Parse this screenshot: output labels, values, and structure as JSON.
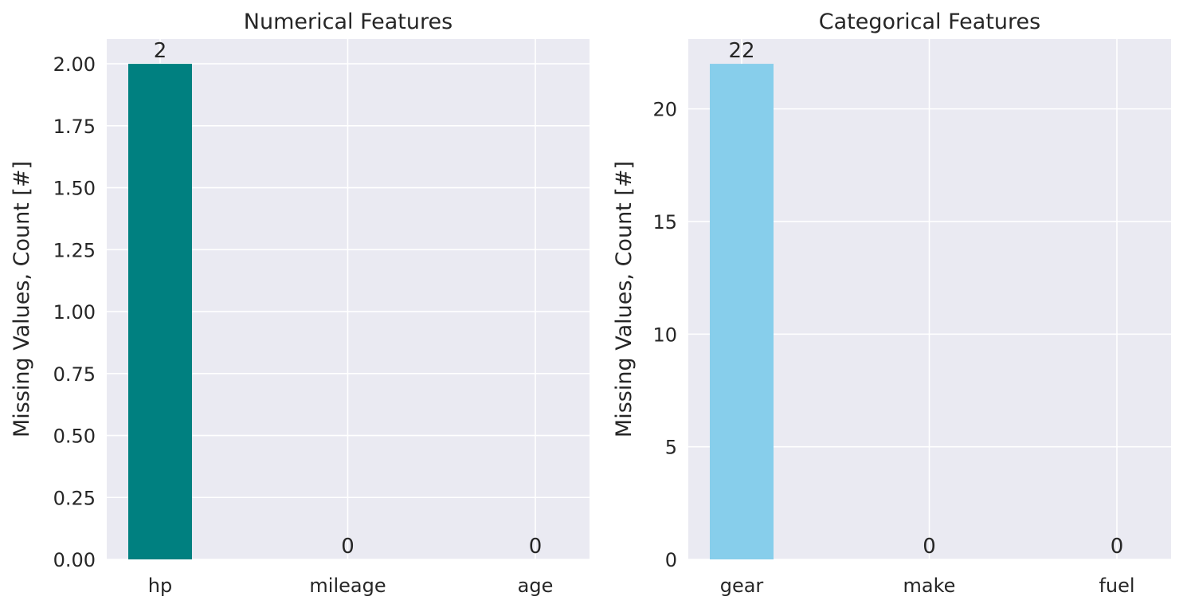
{
  "style": {
    "plot_background": "#EAEAF2",
    "grid_color": "#FFFFFF",
    "text_color": "#262626"
  },
  "chart_data": [
    {
      "type": "bar",
      "title": "Numerical Features",
      "xlabel": "",
      "ylabel": "Missing Values, Count [#]",
      "categories": [
        "hp",
        "mileage",
        "age"
      ],
      "values": [
        2,
        0,
        0
      ],
      "data_labels": [
        "2",
        "0",
        "0"
      ],
      "ylim": [
        0,
        2.1
      ],
      "yticks": [
        0,
        0.25,
        0.5,
        0.75,
        1.0,
        1.25,
        1.5,
        1.75,
        2.0
      ],
      "ytick_labels": [
        "0.00",
        "0.25",
        "0.50",
        "0.75",
        "1.00",
        "1.25",
        "1.50",
        "1.75",
        "2.00"
      ],
      "bar_color": "#008080",
      "grid": true
    },
    {
      "type": "bar",
      "title": "Categorical Features",
      "xlabel": "",
      "ylabel": "Missing Values, Count [#]",
      "categories": [
        "gear",
        "make",
        "fuel"
      ],
      "values": [
        22,
        0,
        0
      ],
      "data_labels": [
        "22",
        "0",
        "0"
      ],
      "ylim": [
        0,
        23.1
      ],
      "yticks": [
        0,
        5,
        10,
        15,
        20
      ],
      "ytick_labels": [
        "0",
        "5",
        "10",
        "15",
        "20"
      ],
      "bar_color": "#87CEEB",
      "grid": true
    }
  ]
}
